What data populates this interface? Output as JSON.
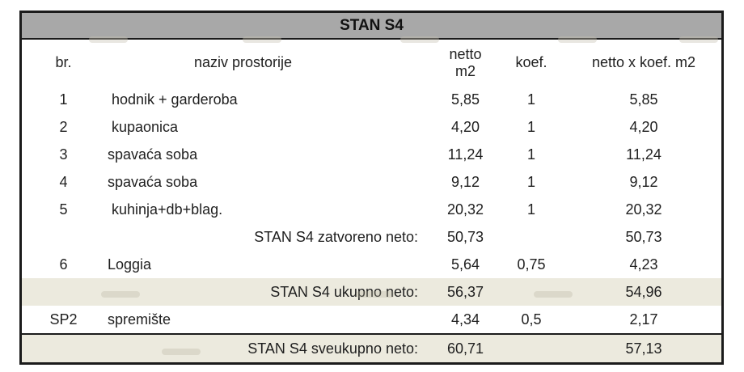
{
  "document": {
    "title": "STAN S4",
    "columns": {
      "br": "br.",
      "name": "naziv prostorije",
      "netto": "netto\nm2",
      "koef": "koef.",
      "total": "netto x koef. m2"
    },
    "rows": [
      {
        "kind": "room",
        "br": "1",
        "name": " hodnik + garderoba",
        "netto": "5,85",
        "koef": "1",
        "total": "5,85",
        "highlight": false
      },
      {
        "kind": "room",
        "br": "2",
        "name": " kupaonica",
        "netto": "4,20",
        "koef": "1",
        "total": "4,20",
        "highlight": false
      },
      {
        "kind": "room",
        "br": "3",
        "name": "spavaća soba",
        "netto": "11,24",
        "koef": "1",
        "total": "11,24",
        "highlight": false
      },
      {
        "kind": "room",
        "br": "4",
        "name": "spavaća soba",
        "netto": "9,12",
        "koef": "1",
        "total": "9,12",
        "highlight": false
      },
      {
        "kind": "room",
        "br": "5",
        "name": " kuhinja+db+blag.",
        "netto": "20,32",
        "koef": "1",
        "total": "20,32",
        "highlight": false
      },
      {
        "kind": "subtotal",
        "label": "STAN S4 zatvoreno neto:",
        "netto": "50,73",
        "koef": "",
        "total": "50,73",
        "highlight": false
      },
      {
        "kind": "room",
        "br": "6",
        "name": "Loggia",
        "netto": "5,64",
        "koef": "0,75",
        "total": "4,23",
        "highlight": false
      },
      {
        "kind": "subtotal",
        "label": "STAN S4 ukupno neto:",
        "netto": "56,37",
        "koef": "",
        "total": "54,96",
        "highlight": true
      },
      {
        "kind": "room",
        "br": "SP2",
        "name": "spremište",
        "netto": "4,34",
        "koef": "0,5",
        "total": "2,17",
        "highlight": false
      },
      {
        "kind": "grandtotal",
        "label": "STAN S4 sveukupno neto:",
        "netto": "60,71",
        "koef": "",
        "total": "57,13",
        "highlight": true
      }
    ],
    "colors": {
      "title_bg": "#a8a8a8",
      "highlight_bg": "#eceade",
      "border": "#1b1b1b",
      "text": "#1f1f1f"
    }
  }
}
